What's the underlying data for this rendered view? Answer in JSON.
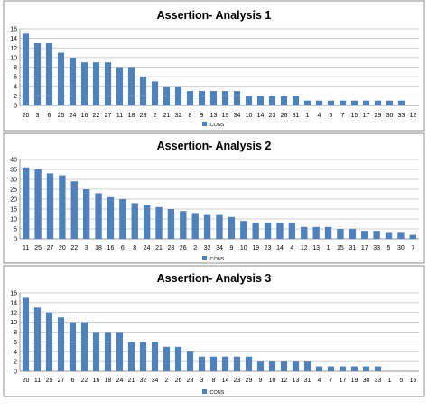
{
  "chart_data": [
    {
      "type": "bar",
      "title": "Assertion- Analysis 1",
      "legend": [
        "ICONS"
      ],
      "legend_position": "bottom",
      "grid": true,
      "ylim": [
        0,
        16
      ],
      "yticks": [
        0,
        2,
        4,
        6,
        8,
        10,
        12,
        14,
        16
      ],
      "categories": [
        "20",
        "3",
        "6",
        "25",
        "24",
        "16",
        "22",
        "27",
        "11",
        "18",
        "28",
        "2",
        "21",
        "32",
        "8",
        "9",
        "13",
        "19",
        "34",
        "10",
        "14",
        "23",
        "26",
        "31",
        "1",
        "4",
        "5",
        "7",
        "15",
        "17",
        "29",
        "30",
        "33",
        "12"
      ],
      "series": [
        {
          "name": "ICONS",
          "values": [
            15,
            13,
            13,
            11,
            10,
            9,
            9,
            9,
            8,
            8,
            6,
            5,
            4,
            4,
            3,
            3,
            3,
            3,
            3,
            2,
            2,
            2,
            2,
            2,
            1,
            1,
            1,
            1,
            1,
            1,
            1,
            1,
            1,
            0
          ]
        }
      ]
    },
    {
      "type": "bar",
      "title": "Assertion- Analysis 2",
      "legend": [
        "ICONS"
      ],
      "legend_position": "bottom",
      "grid": true,
      "ylim": [
        0,
        40
      ],
      "yticks": [
        0,
        5,
        10,
        15,
        20,
        25,
        30,
        35,
        40
      ],
      "categories": [
        "11",
        "25",
        "27",
        "20",
        "22",
        "3",
        "18",
        "16",
        "6",
        "8",
        "24",
        "21",
        "28",
        "26",
        "2",
        "32",
        "34",
        "9",
        "10",
        "19",
        "23",
        "14",
        "4",
        "12",
        "13",
        "1",
        "15",
        "31",
        "17",
        "33",
        "5",
        "30",
        "7"
      ],
      "series": [
        {
          "name": "ICONS",
          "values": [
            36,
            35,
            33,
            32,
            29,
            25,
            23,
            21,
            20,
            18,
            17,
            16,
            15,
            14,
            13,
            12,
            12,
            11,
            9,
            8,
            8,
            8,
            8,
            6,
            6,
            6,
            5,
            5,
            4,
            4,
            3,
            3,
            2
          ]
        }
      ]
    },
    {
      "type": "bar",
      "title": "Assertion- Analysis 3",
      "legend": [
        "ICONS"
      ],
      "legend_position": "bottom",
      "grid": true,
      "ylim": [
        0,
        16
      ],
      "yticks": [
        0,
        2,
        4,
        6,
        8,
        10,
        12,
        14,
        16
      ],
      "categories": [
        "20",
        "11",
        "25",
        "27",
        "6",
        "22",
        "16",
        "18",
        "24",
        "21",
        "32",
        "34",
        "2",
        "26",
        "28",
        "3",
        "8",
        "14",
        "23",
        "29",
        "9",
        "10",
        "12",
        "13",
        "31",
        "4",
        "7",
        "17",
        "19",
        "30",
        "33",
        "1",
        "5",
        "15"
      ],
      "series": [
        {
          "name": "ICONS",
          "values": [
            15,
            13,
            12,
            11,
            10,
            10,
            8,
            8,
            8,
            6,
            6,
            6,
            5,
            5,
            4,
            3,
            3,
            3,
            3,
            3,
            2,
            2,
            2,
            2,
            2,
            1,
            1,
            1,
            1,
            1,
            1,
            0,
            0,
            0
          ]
        }
      ]
    }
  ]
}
